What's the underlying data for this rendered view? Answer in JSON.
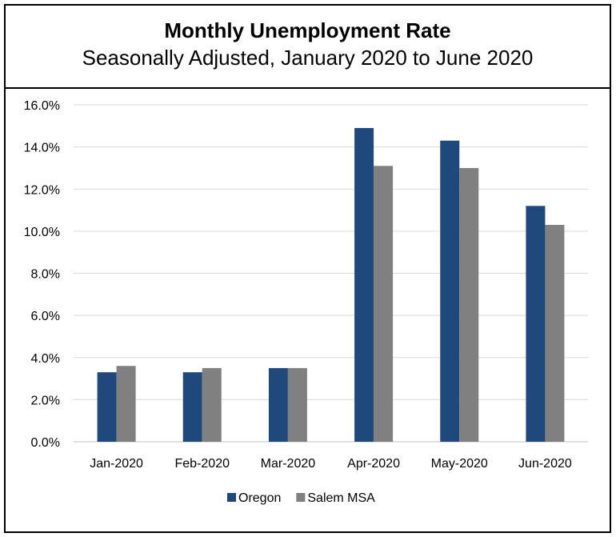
{
  "chart_data": {
    "type": "bar",
    "title": "Monthly Unemployment Rate",
    "subtitle": "Seasonally Adjusted, January 2020 to June 2020",
    "xlabel": "",
    "ylabel": "",
    "categories": [
      "Jan-2020",
      "Feb-2020",
      "Mar-2020",
      "Apr-2020",
      "May-2020",
      "Jun-2020"
    ],
    "series": [
      {
        "name": "Oregon",
        "color": "#1f497d",
        "values": [
          3.3,
          3.3,
          3.5,
          14.9,
          14.3,
          11.2
        ]
      },
      {
        "name": "Salem MSA",
        "color": "#808080",
        "values": [
          3.6,
          3.5,
          3.5,
          13.1,
          13.0,
          10.3
        ]
      }
    ],
    "ylim": [
      0,
      16
    ],
    "y_ticks": [
      0,
      2,
      4,
      6,
      8,
      10,
      12,
      14,
      16
    ],
    "y_tick_labels": [
      "0.0%",
      "2.0%",
      "4.0%",
      "6.0%",
      "8.0%",
      "10.0%",
      "12.0%",
      "14.0%",
      "16.0%"
    ],
    "grid": true,
    "legend_position": "bottom"
  }
}
